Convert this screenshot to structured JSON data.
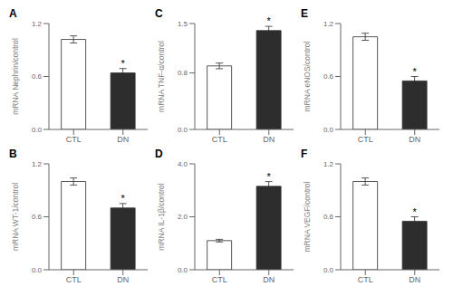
{
  "chart_data": [
    {
      "type": "bar",
      "title": "A",
      "ylabel": "mRNA Nephrin/control",
      "categories": [
        "CTL",
        "DN"
      ],
      "values": [
        1.02,
        0.64
      ],
      "errors": [
        0.04,
        0.05
      ],
      "colors": [
        "white",
        "#2d2d2d"
      ],
      "ylim": [
        0.0,
        1.2
      ],
      "yticks": [
        {
          "value": 0.0,
          "label": "0.0"
        },
        0.6,
        1.2
      ],
      "annotations": [
        {
          "text": "*",
          "category": "DN"
        }
      ]
    },
    {
      "type": "bar",
      "title": "B",
      "ylabel": "mRNA WT-1/control",
      "categories": [
        "CTL",
        "DN"
      ],
      "values": [
        1.0,
        0.7
      ],
      "errors": [
        0.04,
        0.05
      ],
      "colors": [
        "white",
        "#2d2d2d"
      ],
      "ylim": [
        0.0,
        1.2
      ],
      "yticks": [
        {
          "value": 0.0,
          "label": "0.0"
        },
        0.6,
        1.2
      ],
      "annotations": [
        {
          "text": "*",
          "category": "DN"
        }
      ]
    },
    {
      "type": "bar",
      "title": "C",
      "ylabel": "mRNA TNF-α/control",
      "categories": [
        "CTL",
        "DN"
      ],
      "values": [
        0.9,
        1.4
      ],
      "errors": [
        0.04,
        0.06
      ],
      "colors": [
        "white",
        "#2d2d2d"
      ],
      "ylim": [
        0.0,
        1.5
      ],
      "yticks": [
        {
          "value": 0.0,
          "label": "0.0"
        },
        0.8,
        1.5
      ],
      "annotations": [
        {
          "text": "*",
          "category": "DN"
        }
      ]
    },
    {
      "type": "bar",
      "title": "D",
      "ylabel": "mRNA IL-1β/control",
      "categories": [
        "CTL",
        "DN"
      ],
      "values": [
        1.1,
        3.15
      ],
      "errors": [
        0.05,
        0.18
      ],
      "colors": [
        "white",
        "#2d2d2d"
      ],
      "ylim": [
        0.0,
        4.0
      ],
      "yticks": [
        {
          "value": 0.0,
          "label": "0.0"
        },
        {
          "value": 2.0,
          "label": "2.0"
        },
        {
          "value": 4.0,
          "label": "4.0"
        }
      ],
      "annotations": [
        {
          "text": "*",
          "category": "DN"
        }
      ]
    },
    {
      "type": "bar",
      "title": "E",
      "ylabel": "mRNA eNOS/control",
      "categories": [
        "CTL",
        "DN"
      ],
      "values": [
        1.05,
        0.55
      ],
      "errors": [
        0.04,
        0.05
      ],
      "colors": [
        "white",
        "#2d2d2d"
      ],
      "ylim": [
        0.0,
        1.2
      ],
      "yticks": [
        {
          "value": 0.0,
          "label": "0.0"
        },
        0.6,
        1.2
      ],
      "annotations": [
        {
          "text": "*",
          "category": "DN"
        }
      ]
    },
    {
      "type": "bar",
      "title": "F",
      "ylabel": "mRNA VEGF/control",
      "categories": [
        "CTL",
        "DN"
      ],
      "values": [
        1.0,
        0.55
      ],
      "errors": [
        0.04,
        0.05
      ],
      "colors": [
        "white",
        "#2d2d2d"
      ],
      "ylim": [
        0.0,
        1.2
      ],
      "yticks": [
        {
          "value": 0.0,
          "label": "0.0"
        },
        0.6,
        1.2
      ],
      "annotations": [
        {
          "text": "*",
          "category": "DN"
        }
      ]
    }
  ]
}
